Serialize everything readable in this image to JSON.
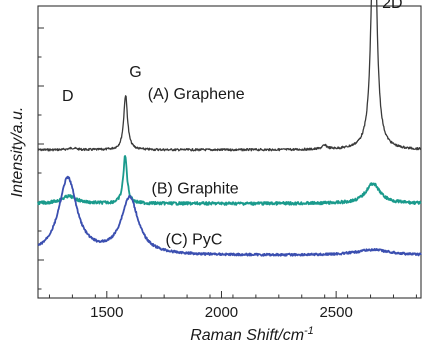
{
  "chart_data": {
    "type": "line",
    "xlabel": "Raman Shift/cm",
    "xlabel_sup": "-1",
    "ylabel": "Intensity/a.u.",
    "xlim": [
      1200,
      2870
    ],
    "x_ticks": [
      "1500",
      "2000",
      "2500"
    ],
    "x_tick_values": [
      1500,
      2000,
      2500
    ],
    "y_ticks_shown": false,
    "grid": false,
    "legend": "none",
    "series": [
      {
        "name": "(A) Graphene",
        "color": "#3a3a3a",
        "baseline": 0.25,
        "noise": 0.006,
        "peaks": [
          {
            "center": 1582,
            "width": 10,
            "height": 0.3
          },
          {
            "center": 1350,
            "width": 20,
            "height": 0.01
          },
          {
            "center": 2450,
            "width": 14,
            "height": 0.02
          },
          {
            "center": 2665,
            "width": 13,
            "height": 1.48
          }
        ]
      },
      {
        "name": "(B) Graphite",
        "color": "#1a9a8c",
        "baseline": 0.545,
        "noise": 0.008,
        "peaks": [
          {
            "center": 1335,
            "width": 40,
            "height": 0.04
          },
          {
            "center": 1580,
            "width": 10,
            "height": 0.26
          },
          {
            "center": 2660,
            "width": 38,
            "height": 0.11
          }
        ]
      },
      {
        "name": "(C) PyC",
        "color": "#3b4fb0",
        "baseline": 0.83,
        "noise": 0.006,
        "peaks": [
          {
            "center": 1330,
            "width": 48,
            "height": 0.42
          },
          {
            "center": 1600,
            "width": 45,
            "height": 0.31
          },
          {
            "center": 2660,
            "width": 90,
            "height": 0.03
          }
        ]
      }
    ],
    "annotations": [
      {
        "text": "D",
        "x": 1330,
        "level": -0.02
      },
      {
        "text": "G",
        "x": 1625,
        "level": -0.15
      },
      {
        "text": "2D",
        "x": 2745,
        "level": -0.53
      },
      {
        "text": "(A) Graphene",
        "x": 1890,
        "level": -0.03
      },
      {
        "text": "(B) Graphite",
        "x": 1885,
        "level": 0.49
      },
      {
        "text": "(C) PyC",
        "x": 1880,
        "level": 0.77
      }
    ]
  }
}
